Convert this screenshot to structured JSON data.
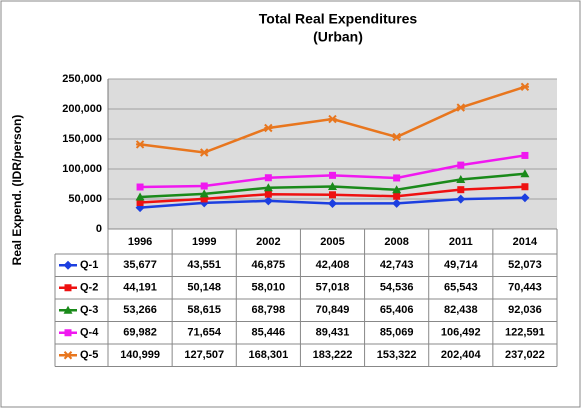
{
  "chart_data": {
    "type": "line",
    "title": "Total Real Expenditures",
    "subtitle": "(Urban)",
    "y_label": "Real Expend. (IDR/person)",
    "categories": [
      "1996",
      "1999",
      "2002",
      "2005",
      "2008",
      "2011",
      "2014"
    ],
    "ylim": [
      0,
      250000
    ],
    "yticks": [
      0,
      {
        "value": 50000,
        "label": "50,000"
      },
      {
        "value": 100000,
        "label": "100,000"
      },
      {
        "value": 150000,
        "label": "150,000"
      },
      {
        "value": 200000,
        "label": "200,000"
      },
      {
        "value": 250000,
        "label": "250,000"
      }
    ],
    "grid": true,
    "series": [
      {
        "name": "Q-1",
        "color": "#1c3fe0",
        "marker": "diamond",
        "values": [
          35677,
          43551,
          46875,
          42408,
          42743,
          49714,
          52073
        ],
        "value_labels": [
          "35,677",
          "43,551",
          "46,875",
          "42,408",
          "42,743",
          "49,714",
          "52,073"
        ]
      },
      {
        "name": "Q-2",
        "color": "#ee1111",
        "marker": "square",
        "values": [
          44191,
          50148,
          58010,
          57018,
          54536,
          65543,
          70443
        ],
        "value_labels": [
          "44,191",
          "50,148",
          "58,010",
          "57,018",
          "54,536",
          "65,543",
          "70,443"
        ]
      },
      {
        "name": "Q-3",
        "color": "#1a8a1a",
        "marker": "triangle",
        "values": [
          53266,
          58615,
          68798,
          70849,
          65406,
          82438,
          92036
        ],
        "value_labels": [
          "53,266",
          "58,615",
          "68,798",
          "70,849",
          "65,406",
          "82,438",
          "92,036"
        ]
      },
      {
        "name": "Q-4",
        "color": "#f018f0",
        "marker": "square",
        "values": [
          69982,
          71654,
          85446,
          89431,
          85069,
          106492,
          122591
        ],
        "value_labels": [
          "69,982",
          "71,654",
          "85,446",
          "89,431",
          "85,069",
          "106,492",
          "122,591"
        ]
      },
      {
        "name": "Q-5",
        "color": "#e8761e",
        "marker": "cross",
        "values": [
          140999,
          127507,
          168301,
          183222,
          153322,
          202404,
          237022
        ],
        "value_labels": [
          "140,999",
          "127,507",
          "168,301",
          "183,222",
          "153,322",
          "202,404",
          "237,022"
        ]
      }
    ]
  }
}
